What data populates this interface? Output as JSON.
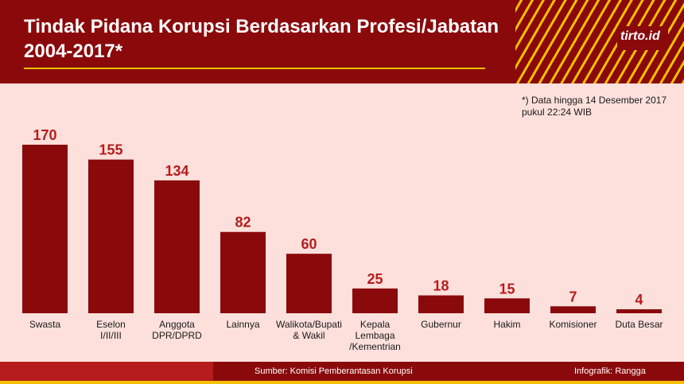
{
  "header": {
    "title_line1": "Tindak Pidana Korupsi Berdasarkan Profesi/Jabatan",
    "title_line2": "2004-2017*",
    "logo": "tirto.id"
  },
  "note": {
    "line1": "*) Data hingga 14 Desember 2017",
    "line2": "pukul 22:24 WIB"
  },
  "footer": {
    "source": "Sumber: Komisi Pemberantasan Korupsi",
    "credit": "Infografik: Rangga"
  },
  "colors": {
    "bar": "#8a0a0c",
    "value_label": "#b51c1c",
    "background": "#fde0dc",
    "accent": "#f4c000"
  },
  "chart_data": {
    "type": "bar",
    "categories": [
      [
        "Swasta"
      ],
      [
        "Eselon",
        "I/II/III"
      ],
      [
        "Anggota",
        "DPR/DPRD"
      ],
      [
        "Lainnya"
      ],
      [
        "Walikota/Bupati",
        "& Wakil"
      ],
      [
        "Kepala",
        "Lembaga",
        "/Kementrian"
      ],
      [
        "Gubernur"
      ],
      [
        "Hakim"
      ],
      [
        "Komisioner"
      ],
      [
        "Duta Besar"
      ]
    ],
    "values": [
      170,
      155,
      134,
      82,
      60,
      25,
      18,
      15,
      7,
      4
    ],
    "ylim": [
      0,
      170
    ],
    "grid": false,
    "legend": "none"
  }
}
